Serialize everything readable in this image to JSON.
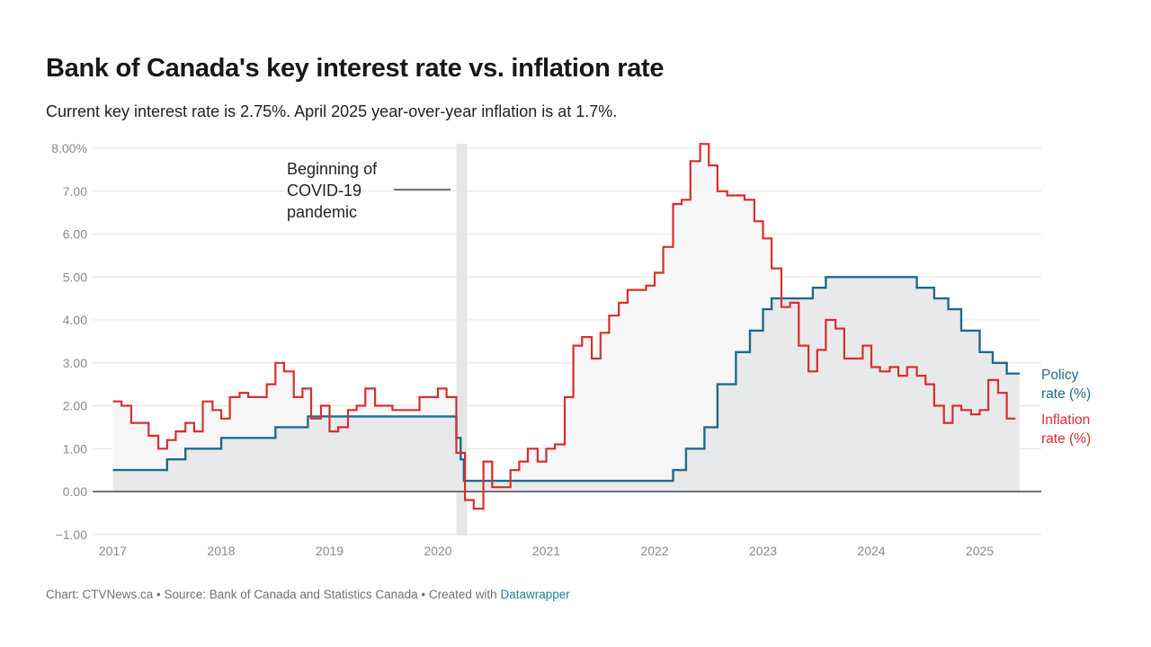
{
  "header": {
    "title": "Bank of Canada's key interest rate vs. inflation rate",
    "subtitle": "Current key interest rate is 2.75%. April 2025 year-over-year inflation is at 1.7%."
  },
  "footer": {
    "text": "Chart: CTVNews.ca • Source: Bank of Canada and Statistics Canada • Created with",
    "link": "Datawrapper"
  },
  "colors": {
    "policy": "#1f6b8a",
    "inflation": "#d62f2f",
    "grid": "#e4e4e4",
    "policy_area": "#e8e9eb",
    "inflation_area": "#f6f6f7",
    "highlight": "#e6e6e6",
    "tick": "#8a8a8a"
  },
  "chart_data": {
    "type": "line",
    "step": true,
    "xlim": [
      2017.0,
      2025.37
    ],
    "ylim": [
      -1.0,
      8.2
    ],
    "y_ticks": [
      {
        "value": 8,
        "label": "8.00%"
      },
      {
        "value": 7,
        "label": "7.00"
      },
      {
        "value": 6,
        "label": "6.00"
      },
      {
        "value": 5,
        "label": "5.00"
      },
      {
        "value": 4,
        "label": "4.00"
      },
      {
        "value": 3,
        "label": "3.00"
      },
      {
        "value": 2,
        "label": "2.00"
      },
      {
        "value": 1,
        "label": "1.00"
      },
      {
        "value": 0,
        "label": "0.00"
      },
      {
        "value": -1,
        "label": "−1.00"
      }
    ],
    "x_ticks": [
      {
        "value": 2017,
        "label": "2017"
      },
      {
        "value": 2018,
        "label": "2018"
      },
      {
        "value": 2019,
        "label": "2019"
      },
      {
        "value": 2020,
        "label": "2020"
      },
      {
        "value": 2021,
        "label": "2021"
      },
      {
        "value": 2022,
        "label": "2022"
      },
      {
        "value": 2023,
        "label": "2023"
      },
      {
        "value": 2024,
        "label": "2024"
      },
      {
        "value": 2025,
        "label": "2025"
      }
    ],
    "annotation": {
      "lines": [
        "Beginning of",
        "COVID-19",
        "pandemic"
      ],
      "x_start": 2020.17,
      "x_end": 2020.27
    },
    "series": [
      {
        "name": "Policy rate",
        "label_lines": [
          "Policy",
          "rate (%)"
        ],
        "points": [
          [
            2017.0,
            0.5
          ],
          [
            2017.5,
            0.75
          ],
          [
            2017.67,
            1.0
          ],
          [
            2018.0,
            1.25
          ],
          [
            2018.5,
            1.5
          ],
          [
            2018.8,
            1.75
          ],
          [
            2020.17,
            1.25
          ],
          [
            2020.21,
            0.75
          ],
          [
            2020.24,
            0.25
          ],
          [
            2022.17,
            0.5
          ],
          [
            2022.29,
            1.0
          ],
          [
            2022.46,
            1.5
          ],
          [
            2022.58,
            2.5
          ],
          [
            2022.75,
            3.25
          ],
          [
            2022.88,
            3.75
          ],
          [
            2023.0,
            4.25
          ],
          [
            2023.08,
            4.5
          ],
          [
            2023.46,
            4.75
          ],
          [
            2023.58,
            5.0
          ],
          [
            2024.42,
            4.75
          ],
          [
            2024.58,
            4.5
          ],
          [
            2024.71,
            4.25
          ],
          [
            2024.83,
            3.75
          ],
          [
            2025.0,
            3.25
          ],
          [
            2025.12,
            3.0
          ],
          [
            2025.25,
            2.75
          ],
          [
            2025.37,
            2.75
          ]
        ]
      },
      {
        "name": "Inflation rate",
        "label_lines": [
          "Inflation",
          "rate (%)"
        ],
        "points": [
          [
            2017.0,
            2.1
          ],
          [
            2017.08,
            2.0
          ],
          [
            2017.17,
            1.6
          ],
          [
            2017.33,
            1.3
          ],
          [
            2017.42,
            1.0
          ],
          [
            2017.5,
            1.2
          ],
          [
            2017.58,
            1.4
          ],
          [
            2017.67,
            1.6
          ],
          [
            2017.75,
            1.4
          ],
          [
            2017.83,
            2.1
          ],
          [
            2017.92,
            1.9
          ],
          [
            2018.0,
            1.7
          ],
          [
            2018.08,
            2.2
          ],
          [
            2018.17,
            2.3
          ],
          [
            2018.25,
            2.2
          ],
          [
            2018.42,
            2.5
          ],
          [
            2018.5,
            3.0
          ],
          [
            2018.58,
            2.8
          ],
          [
            2018.67,
            2.2
          ],
          [
            2018.75,
            2.4
          ],
          [
            2018.83,
            1.7
          ],
          [
            2018.92,
            2.0
          ],
          [
            2019.0,
            1.4
          ],
          [
            2019.08,
            1.5
          ],
          [
            2019.17,
            1.9
          ],
          [
            2019.25,
            2.0
          ],
          [
            2019.33,
            2.4
          ],
          [
            2019.42,
            2.0
          ],
          [
            2019.58,
            1.9
          ],
          [
            2019.83,
            2.2
          ],
          [
            2020.0,
            2.4
          ],
          [
            2020.08,
            2.2
          ],
          [
            2020.17,
            0.9
          ],
          [
            2020.25,
            -0.2
          ],
          [
            2020.33,
            -0.4
          ],
          [
            2020.42,
            0.7
          ],
          [
            2020.5,
            0.1
          ],
          [
            2020.67,
            0.5
          ],
          [
            2020.75,
            0.7
          ],
          [
            2020.83,
            1.0
          ],
          [
            2020.92,
            0.7
          ],
          [
            2021.0,
            1.0
          ],
          [
            2021.08,
            1.1
          ],
          [
            2021.17,
            2.2
          ],
          [
            2021.25,
            3.4
          ],
          [
            2021.33,
            3.6
          ],
          [
            2021.42,
            3.1
          ],
          [
            2021.5,
            3.7
          ],
          [
            2021.58,
            4.1
          ],
          [
            2021.67,
            4.4
          ],
          [
            2021.75,
            4.7
          ],
          [
            2021.92,
            4.8
          ],
          [
            2022.0,
            5.1
          ],
          [
            2022.08,
            5.7
          ],
          [
            2022.17,
            6.7
          ],
          [
            2022.25,
            6.8
          ],
          [
            2022.33,
            7.7
          ],
          [
            2022.42,
            8.1
          ],
          [
            2022.5,
            7.6
          ],
          [
            2022.58,
            7.0
          ],
          [
            2022.67,
            6.9
          ],
          [
            2022.83,
            6.8
          ],
          [
            2022.92,
            6.3
          ],
          [
            2023.0,
            5.9
          ],
          [
            2023.08,
            5.2
          ],
          [
            2023.17,
            4.3
          ],
          [
            2023.25,
            4.4
          ],
          [
            2023.33,
            3.4
          ],
          [
            2023.42,
            2.8
          ],
          [
            2023.5,
            3.3
          ],
          [
            2023.58,
            4.0
          ],
          [
            2023.67,
            3.8
          ],
          [
            2023.75,
            3.1
          ],
          [
            2023.92,
            3.4
          ],
          [
            2024.0,
            2.9
          ],
          [
            2024.08,
            2.8
          ],
          [
            2024.17,
            2.9
          ],
          [
            2024.25,
            2.7
          ],
          [
            2024.33,
            2.9
          ],
          [
            2024.42,
            2.7
          ],
          [
            2024.5,
            2.5
          ],
          [
            2024.58,
            2.0
          ],
          [
            2024.67,
            1.6
          ],
          [
            2024.75,
            2.0
          ],
          [
            2024.83,
            1.9
          ],
          [
            2024.92,
            1.8
          ],
          [
            2025.0,
            1.9
          ],
          [
            2025.08,
            2.6
          ],
          [
            2025.17,
            2.3
          ],
          [
            2025.25,
            1.7
          ],
          [
            2025.33,
            1.7
          ]
        ]
      }
    ]
  }
}
